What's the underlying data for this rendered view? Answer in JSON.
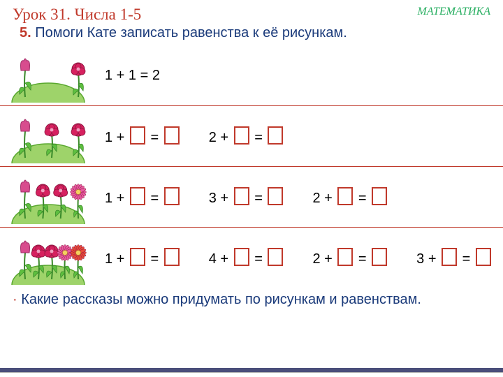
{
  "header": {
    "lesson_title": "Урок 31. Числа 1-5",
    "subject": "МАТЕМАТИКА"
  },
  "task": {
    "num": "5.",
    "text": "Помоги Кате записать равенства к её рисункам."
  },
  "colors": {
    "hill": "#9ed36a",
    "hill_stroke": "#5aa82f",
    "tulip": "#d84c8e",
    "tulip_stroke": "#a02e68",
    "rose": "#d6215f",
    "rose_stroke": "#8e1640",
    "aster_pink": "#e85aa0",
    "aster_red": "#e84a3a",
    "stem": "#3a8a2a",
    "leaf": "#5ebf3f"
  },
  "rows": [
    {
      "flowers": {
        "tulips": 1,
        "roses": 1,
        "asters_pink": 0,
        "asters_red": 0
      },
      "equations": [
        {
          "prefix": "1 + 1 = 2",
          "boxes": 0
        }
      ]
    },
    {
      "flowers": {
        "tulips": 1,
        "roses": 2,
        "asters_pink": 0,
        "asters_red": 0
      },
      "equations": [
        {
          "prefix": "1 +",
          "boxes": 2
        },
        {
          "prefix": "2 +",
          "boxes": 2
        }
      ]
    },
    {
      "flowers": {
        "tulips": 1,
        "roses": 2,
        "asters_pink": 1,
        "asters_red": 0
      },
      "equations": [
        {
          "prefix": "1 +",
          "boxes": 2
        },
        {
          "prefix": "3 +",
          "boxes": 2
        },
        {
          "prefix": "2 +",
          "boxes": 2
        }
      ]
    },
    {
      "flowers": {
        "tulips": 1,
        "roses": 2,
        "asters_pink": 1,
        "asters_red": 1
      },
      "equations": [
        {
          "prefix": "1 +",
          "boxes": 2
        },
        {
          "prefix": "4 +",
          "boxes": 2
        },
        {
          "prefix": "2 +",
          "boxes": 2
        },
        {
          "prefix": "3 +",
          "boxes": 2
        }
      ]
    }
  ],
  "footer": {
    "bullet": "·",
    "text": "Какие рассказы можно придумать по рисункам и равенствам."
  }
}
